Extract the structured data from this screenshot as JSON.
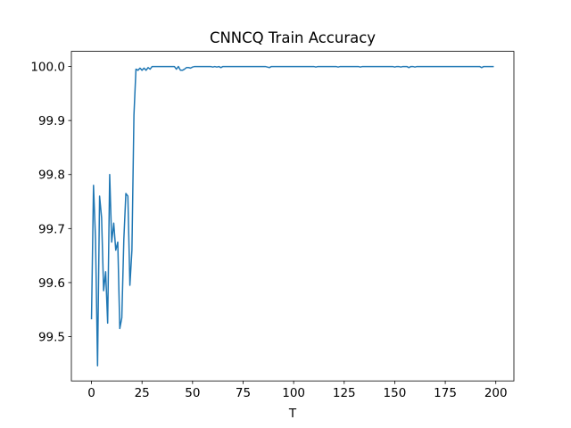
{
  "chart_data": {
    "type": "line",
    "title": "CNNCQ Train Accuracy",
    "x_label": "T",
    "color": "#1f77b4",
    "x": [
      0,
      1,
      2,
      3,
      4,
      5,
      6,
      7,
      8,
      9,
      10,
      11,
      12,
      13,
      14,
      15,
      16,
      17,
      18,
      19,
      20,
      21,
      22,
      23,
      24,
      25,
      26,
      27,
      28,
      29,
      30,
      31,
      32,
      33,
      34,
      35,
      36,
      37,
      38,
      39,
      40,
      41,
      42,
      43,
      44,
      45,
      46,
      47,
      48,
      49,
      50,
      51,
      52,
      53,
      54,
      55,
      56,
      57,
      58,
      59,
      60,
      61,
      62,
      63,
      64,
      65,
      66,
      67,
      68,
      69,
      70,
      71,
      72,
      73,
      74,
      75,
      76,
      77,
      78,
      79,
      80,
      81,
      82,
      83,
      84,
      85,
      86,
      87,
      88,
      89,
      90,
      91,
      92,
      93,
      94,
      95,
      96,
      97,
      98,
      99,
      100,
      101,
      102,
      103,
      104,
      105,
      106,
      107,
      108,
      109,
      110,
      111,
      112,
      113,
      114,
      115,
      116,
      117,
      118,
      119,
      120,
      121,
      122,
      123,
      124,
      125,
      126,
      127,
      128,
      129,
      130,
      131,
      132,
      133,
      134,
      135,
      136,
      137,
      138,
      139,
      140,
      141,
      142,
      143,
      144,
      145,
      146,
      147,
      148,
      149,
      150,
      151,
      152,
      153,
      154,
      155,
      156,
      157,
      158,
      159,
      160,
      161,
      162,
      163,
      164,
      165,
      166,
      167,
      168,
      169,
      170,
      171,
      172,
      173,
      174,
      175,
      176,
      177,
      178,
      179,
      180,
      181,
      182,
      183,
      184,
      185,
      186,
      187,
      188,
      189,
      190,
      191,
      192,
      193,
      194,
      195,
      196,
      197,
      198,
      199
    ],
    "values": [
      99.532,
      99.78,
      99.68,
      99.446,
      99.76,
      99.72,
      99.585,
      99.62,
      99.525,
      99.8,
      99.675,
      99.71,
      99.66,
      99.675,
      99.515,
      99.535,
      99.68,
      99.765,
      99.76,
      99.595,
      99.66,
      99.91,
      99.995,
      99.993,
      99.997,
      99.993,
      99.997,
      99.993,
      99.998,
      99.995,
      100,
      100,
      100,
      100,
      100,
      100,
      100,
      100,
      100,
      100,
      100,
      100,
      99.995,
      100,
      99.993,
      99.993,
      99.995,
      99.998,
      99.998,
      99.997,
      99.999,
      100,
      100,
      100,
      100,
      100,
      100,
      100,
      100,
      100,
      99.999,
      100,
      99.999,
      100,
      99.998,
      100,
      100,
      100,
      100,
      100,
      100,
      100,
      100,
      100,
      100,
      100,
      100,
      100,
      100,
      100,
      100,
      100,
      100,
      100,
      100,
      100,
      100,
      99.999,
      99.998,
      100,
      100,
      100,
      100,
      100,
      100,
      100,
      100,
      100,
      100,
      100,
      100,
      100,
      100,
      100,
      100,
      100,
      100,
      100,
      100,
      100,
      100,
      99.999,
      100,
      100,
      100,
      100,
      100,
      100,
      100,
      100,
      100,
      100,
      99.999,
      100,
      100,
      100,
      100,
      100,
      100,
      100,
      100,
      100,
      100,
      99.999,
      100,
      100,
      100,
      100,
      100,
      100,
      100,
      100,
      100,
      100,
      100,
      100,
      100,
      100,
      100,
      100,
      99.999,
      100,
      100,
      99.999,
      100,
      100,
      100,
      99.998,
      100,
      100,
      99.999,
      100,
      100,
      100,
      100,
      100,
      100,
      100,
      100,
      100,
      100,
      100,
      100,
      100,
      100,
      100,
      100,
      100,
      100,
      100,
      100,
      100,
      100,
      100,
      100,
      100,
      100,
      100,
      100,
      100,
      100,
      100,
      100,
      99.998,
      100,
      100,
      100,
      100,
      100,
      100
    ],
    "xlim": [
      -9.95,
      208.95
    ],
    "ylim": [
      99.418,
      100.028
    ],
    "xticks": [
      0,
      25,
      50,
      75,
      100,
      125,
      150,
      175,
      200
    ],
    "yticks": [
      99.5,
      99.6,
      99.7,
      99.8,
      99.9,
      {
        "value": 100,
        "label": "100.0"
      }
    ]
  }
}
